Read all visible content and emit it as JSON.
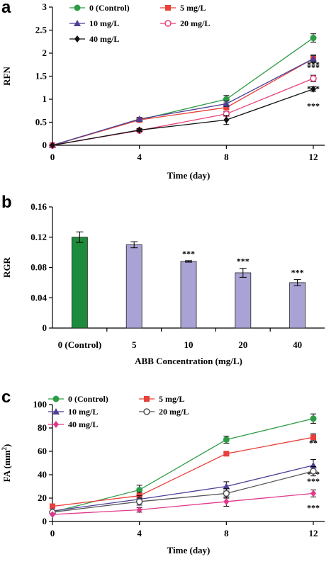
{
  "chart_data": [
    {
      "panel": "a",
      "type": "line",
      "xlabel": "Time (day)",
      "ylabel": "RFN",
      "x": [
        0,
        4,
        8,
        12
      ],
      "xlim": [
        0,
        12
      ],
      "ylim": [
        0,
        3
      ],
      "xticks": [
        "0",
        "4",
        "8",
        "12"
      ],
      "yticks": [
        "0",
        "0.5",
        "1",
        "1.5",
        "2",
        "2.5",
        "3"
      ],
      "legend_position": "top-left",
      "series": [
        {
          "name": "0 (Control)",
          "values": [
            0,
            0.55,
            1.0,
            2.33
          ],
          "errors": [
            0,
            0.04,
            0.08,
            0.09
          ],
          "color": "#2e9c46",
          "marker": "circle",
          "sig": ""
        },
        {
          "name": "5 mg/L",
          "values": [
            0,
            0.55,
            0.82,
            1.88
          ],
          "errors": [
            0,
            0.03,
            0.05,
            0.08
          ],
          "color": "#e8403a",
          "marker": "square",
          "sig": "***"
        },
        {
          "name": "10 mg/L",
          "values": [
            0,
            0.57,
            0.9,
            1.88
          ],
          "errors": [
            0,
            0.03,
            0.06,
            0.07
          ],
          "color": "#4b3f96",
          "marker": "triangle",
          "sig": "***"
        },
        {
          "name": "20 mg/L",
          "values": [
            0,
            0.32,
            0.68,
            1.45
          ],
          "errors": [
            0,
            0.03,
            0.05,
            0.07
          ],
          "color": "#e8417e",
          "marker": "circle-open",
          "sig": "***"
        },
        {
          "name": "40 mg/L",
          "values": [
            0,
            0.33,
            0.55,
            1.22
          ],
          "errors": [
            0,
            0.03,
            0.1,
            0.05
          ],
          "color": "#111111",
          "marker": "diamond",
          "sig": "***"
        }
      ]
    },
    {
      "panel": "b",
      "type": "bar",
      "xlabel": "ABB Concentration (mg/L)",
      "ylabel": "RGR",
      "categories": [
        "0 (Control)",
        "5",
        "10",
        "20",
        "40"
      ],
      "values": [
        0.12,
        0.11,
        0.088,
        0.073,
        0.06
      ],
      "errors": [
        0.007,
        0.004,
        0.001,
        0.006,
        0.004
      ],
      "sig": [
        "",
        "",
        "***",
        "***",
        "***"
      ],
      "bar_colors": [
        "#1e8a3c",
        "#a8a3d4",
        "#a8a3d4",
        "#a8a3d4",
        "#a8a3d4"
      ],
      "ylim": [
        0,
        0.16
      ],
      "yticks": [
        "0",
        "0.04",
        "0.08",
        "0.12",
        "0.16"
      ]
    },
    {
      "panel": "c",
      "type": "line",
      "xlabel": "Time (day)",
      "ylabel": "FA (mm",
      "ylabel_sup": "2",
      "ylabel_end": ")",
      "x": [
        0,
        4,
        8,
        12
      ],
      "xlim": [
        0,
        12
      ],
      "ylim": [
        0,
        100
      ],
      "xticks": [
        "0",
        "4",
        "8",
        "12"
      ],
      "yticks": [
        "0",
        "20",
        "40",
        "60",
        "80",
        "100"
      ],
      "legend_position": "top-left",
      "series": [
        {
          "name": "0 (Control)",
          "values": [
            8,
            27,
            70,
            88
          ],
          "errors": [
            0,
            4,
            3,
            4
          ],
          "color": "#2e9c46",
          "marker": "circle",
          "sig": ""
        },
        {
          "name": "5 mg/L",
          "values": [
            13,
            22,
            58,
            72
          ],
          "errors": [
            0,
            3,
            1,
            3
          ],
          "color": "#e8403a",
          "marker": "square",
          "sig": "**"
        },
        {
          "name": "10 mg/L",
          "values": [
            9,
            19,
            30,
            48
          ],
          "errors": [
            0,
            3,
            4,
            5
          ],
          "color": "#4b3f96",
          "marker": "triangle",
          "sig": "***"
        },
        {
          "name": "20 mg/L",
          "values": [
            8,
            17,
            24,
            43
          ],
          "errors": [
            0,
            3,
            4,
            4
          ],
          "color": "#555555",
          "marker": "circle-open",
          "sig": "***"
        },
        {
          "name": "40 mg/L",
          "values": [
            6,
            10,
            17,
            24
          ],
          "errors": [
            0,
            2,
            4,
            3
          ],
          "color": "#e0388a",
          "marker": "diamond",
          "sig": "***"
        }
      ]
    }
  ]
}
